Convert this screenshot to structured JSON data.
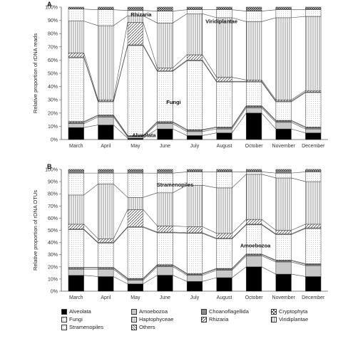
{
  "chart_data": [
    {
      "type": "bar",
      "stacked": true,
      "panel_label": "A",
      "ylabel": "Relative proportion of rDNA reads",
      "yticks": [
        "0%",
        "10%",
        "20%",
        "30%",
        "40%",
        "50%",
        "60%",
        "70%",
        "80%",
        "90%",
        "100%"
      ],
      "ylim": [
        0,
        100
      ],
      "categories": [
        "March",
        "April",
        "May",
        "June",
        "July",
        "August",
        "October",
        "November",
        "December"
      ],
      "series": [
        {
          "name": "Alveolata",
          "values": [
            9,
            11,
            1,
            8,
            3,
            5,
            20,
            8,
            5
          ]
        },
        {
          "name": "Amoebozoa",
          "values": [
            3,
            6,
            1,
            4,
            3,
            3,
            4,
            5,
            3
          ]
        },
        {
          "name": "Choanoflagellida",
          "values": [
            1,
            1,
            0.5,
            1,
            1,
            1,
            1,
            1,
            1
          ]
        },
        {
          "name": "Cryptophyta",
          "values": [
            0.5,
            0.5,
            0.5,
            0.5,
            0.5,
            0.5,
            0.5,
            0.5,
            0.5
          ]
        },
        {
          "name": "Fungi",
          "values": [
            48,
            10,
            68,
            38,
            52,
            34,
            18,
            14,
            26
          ]
        },
        {
          "name": "Haptophyceae",
          "values": [
            0.5,
            0.5,
            0.5,
            0.5,
            0.5,
            0.5,
            0.5,
            0.5,
            0.5
          ]
        },
        {
          "name": "Rhizaria",
          "values": [
            3,
            1,
            17,
            2,
            4,
            3,
            1,
            1,
            1
          ]
        },
        {
          "name": "Viridiplantae",
          "values": [
            24,
            56,
            5,
            34,
            31,
            45,
            44,
            62,
            56
          ]
        },
        {
          "name": "Stramenopiles",
          "values": [
            9,
            12,
            4,
            9,
            3,
            6,
            8,
            6,
            5
          ]
        },
        {
          "name": "Others",
          "values": [
            1.5,
            2,
            2.5,
            3,
            2,
            2,
            3,
            2,
            2
          ]
        }
      ],
      "annotations": [
        "Rhizaria",
        "Viridiplantae",
        "Fungi",
        "Alveolata"
      ]
    },
    {
      "type": "bar",
      "stacked": true,
      "panel_label": "B",
      "ylabel": "Relative proportion of rDNA OTUs",
      "yticks": [
        "0%",
        "10%",
        "20%",
        "30%",
        "40%",
        "50%",
        "60%",
        "70%",
        "80%",
        "90%",
        "100%"
      ],
      "ylim": [
        0,
        100
      ],
      "categories": [
        "March",
        "April",
        "May",
        "June",
        "July",
        "August",
        "October",
        "November",
        "December"
      ],
      "series": [
        {
          "name": "Alveolata",
          "values": [
            13,
            12,
            6,
            13,
            8,
            11,
            20,
            14,
            12
          ]
        },
        {
          "name": "Amoebozoa",
          "values": [
            5,
            6,
            3,
            7,
            5,
            6,
            9,
            10,
            9
          ]
        },
        {
          "name": "Choanoflagellida",
          "values": [
            1,
            1,
            1,
            1,
            1,
            1,
            1,
            1,
            1
          ]
        },
        {
          "name": "Cryptophyta",
          "values": [
            0.5,
            0.5,
            0.5,
            0.5,
            0.5,
            0.5,
            0.5,
            0.5,
            0.5
          ]
        },
        {
          "name": "Fungi",
          "values": [
            31,
            20,
            42,
            26,
            33,
            24,
            24,
            21,
            29
          ]
        },
        {
          "name": "Haptophyceae",
          "values": [
            0.5,
            0.5,
            0.5,
            0.5,
            0.5,
            0.5,
            0.5,
            0.5,
            0.5
          ]
        },
        {
          "name": "Rhizaria",
          "values": [
            4,
            3,
            14,
            5,
            5,
            4,
            4,
            3,
            3
          ]
        },
        {
          "name": "Viridiplantae",
          "values": [
            24,
            45,
            10,
            27,
            34,
            37,
            37,
            43,
            35
          ]
        },
        {
          "name": "Stramenopiles",
          "values": [
            18,
            9,
            20,
            16,
            11,
            13,
            2,
            4,
            8
          ]
        },
        {
          "name": "Others",
          "values": [
            3,
            3,
            3,
            3,
            2,
            2,
            2,
            3,
            2
          ]
        }
      ],
      "annotations": [
        "Stramenopiles",
        "Amoebozoa"
      ]
    }
  ],
  "legend": {
    "items": [
      {
        "label": "Alveolata",
        "fill": "#000000"
      },
      {
        "label": "Amoebozoa",
        "fill": "#c8c8c8"
      },
      {
        "label": "Choanoflagellida",
        "fill": "#8a8a8a"
      },
      {
        "label": "Cryptophyta",
        "fill": "#5a5a5a"
      },
      {
        "label": "Fungi",
        "fill": "#ffffff"
      },
      {
        "label": "Haptophyceae",
        "fill": "#e8e8e8"
      },
      {
        "label": "Rhizaria",
        "fill": "#bdbdbd"
      },
      {
        "label": "Viridiplantae",
        "fill": "#d4d4d4"
      },
      {
        "label": "Stramenopiles",
        "fill": "#f4f4f4"
      },
      {
        "label": "Others",
        "fill": "#444444"
      }
    ]
  }
}
